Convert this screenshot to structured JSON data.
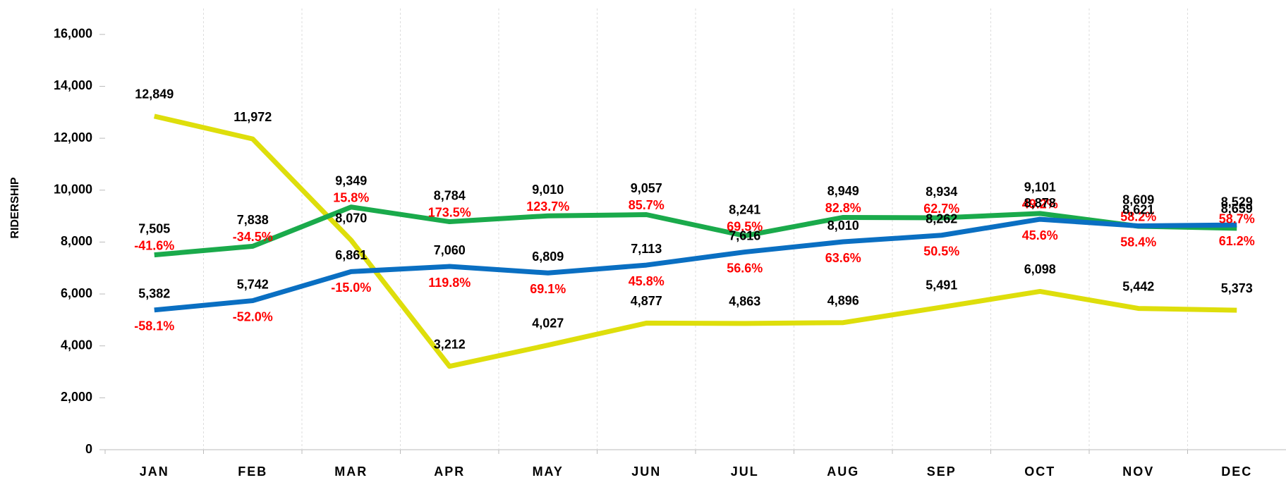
{
  "chart_data": {
    "type": "line",
    "y_label": "RIDERSHIP",
    "categories": [
      "JAN",
      "FEB",
      "MAR",
      "APR",
      "MAY",
      "JUN",
      "JUL",
      "AUG",
      "SEP",
      "OCT",
      "NOV",
      "DEC"
    ],
    "series": [
      {
        "color": "#dede0b",
        "values": [
          12849,
          11972,
          8070,
          3212,
          4027,
          4877,
          4863,
          4896,
          5491,
          6098,
          5442,
          5373
        ],
        "value_labels": [
          "12,849",
          "11,972",
          "8,070",
          "3,212",
          "4,027",
          "4,877",
          "4,863",
          "4,896",
          "5,491",
          "6,098",
          "5,442",
          "5,373"
        ]
      },
      {
        "color": "#1aaa4b",
        "values": [
          7505,
          7838,
          9349,
          8784,
          9010,
          9057,
          8241,
          8949,
          8934,
          9101,
          8609,
          8529
        ],
        "value_labels": [
          "7,505",
          "7,838",
          "9,349",
          "8,784",
          "9,010",
          "9,057",
          "8,241",
          "8,949",
          "8,934",
          "9,101",
          "8,609",
          "8,529"
        ],
        "change_labels": [
          "-41.6%",
          "-34.5%",
          "15.8%",
          "173.5%",
          "123.7%",
          "85.7%",
          "69.5%",
          "82.8%",
          "62.7%",
          "49.2%",
          "58.2%",
          "58.7%"
        ]
      },
      {
        "color": "#0a6fc2",
        "values": [
          5382,
          5742,
          6861,
          7060,
          6809,
          7113,
          7616,
          8010,
          8262,
          8878,
          8621,
          8659
        ],
        "value_labels": [
          "5,382",
          "5,742",
          "6,861",
          "7,060",
          "6,809",
          "7,113",
          "7,616",
          "8,010",
          "8,262",
          "8,878",
          "8,621",
          "8,659"
        ],
        "change_labels": [
          "-58.1%",
          "-52.0%",
          "-15.0%",
          "119.8%",
          "69.1%",
          "45.8%",
          "56.6%",
          "63.6%",
          "50.5%",
          "45.6%",
          "58.4%",
          "61.2%"
        ]
      }
    ],
    "ylim": [
      0,
      17000
    ],
    "yticks": [
      0,
      {
        "value": 2000,
        "label": "2,000"
      },
      {
        "value": 4000,
        "label": "4,000"
      },
      {
        "value": 6000,
        "label": "6,000"
      },
      {
        "value": 8000,
        "label": "8,000"
      },
      {
        "value": 10000,
        "label": "10,000"
      },
      {
        "value": 12000,
        "label": "12,000"
      },
      {
        "value": 14000,
        "label": "14,000"
      },
      {
        "value": 16000,
        "label": "16,000"
      }
    ],
    "change_color": "#ff0000",
    "grid": true
  }
}
